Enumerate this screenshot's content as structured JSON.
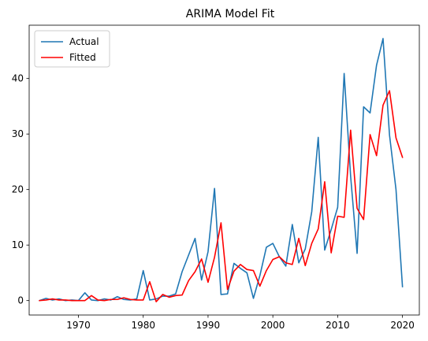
{
  "chart_data": {
    "type": "line",
    "title": "ARIMA Model Fit",
    "xlabel": "",
    "ylabel": "",
    "xlim": [
      1962.4,
      2022.6
    ],
    "ylim": [
      -2.6,
      49.6
    ],
    "x_ticks": [
      1970,
      1980,
      1990,
      2000,
      2010,
      2020
    ],
    "y_ticks": [
      0,
      10,
      20,
      30,
      40
    ],
    "legend_position": "top-left",
    "grid": false,
    "x": [
      1964,
      1965,
      1966,
      1967,
      1968,
      1969,
      1970,
      1971,
      1972,
      1973,
      1974,
      1975,
      1976,
      1977,
      1978,
      1979,
      1980,
      1981,
      1982,
      1983,
      1984,
      1985,
      1986,
      1987,
      1988,
      1989,
      1990,
      1991,
      1992,
      1993,
      1994,
      1995,
      1996,
      1997,
      1998,
      1999,
      2000,
      2001,
      2002,
      2003,
      2004,
      2005,
      2006,
      2007,
      2008,
      2009,
      2010,
      2011,
      2012,
      2013,
      2014,
      2015,
      2016,
      2017,
      2018,
      2019,
      2020
    ],
    "series": [
      {
        "name": "Actual",
        "color": "#1f77b4",
        "values": [
          0.0,
          0.4,
          0.1,
          0.3,
          0.0,
          0.1,
          0.0,
          1.4,
          0.1,
          0.0,
          0.3,
          0.1,
          0.7,
          0.2,
          0.1,
          0.3,
          5.4,
          0.1,
          0.3,
          0.8,
          0.8,
          1.2,
          5.2,
          8.2,
          11.2,
          3.7,
          8.8,
          20.2,
          1.1,
          1.2,
          6.7,
          5.8,
          5.0,
          0.4,
          4.5,
          9.6,
          10.3,
          7.9,
          6.2,
          13.7,
          6.8,
          9.3,
          16.0,
          29.4,
          9.1,
          12.8,
          16.8,
          40.9,
          22.4,
          8.5,
          34.9,
          33.8,
          42.4,
          47.2,
          29.8,
          20.0,
          2.5
        ]
      },
      {
        "name": "Fitted",
        "color": "#ff0000",
        "values": [
          0.0,
          0.1,
          0.3,
          0.1,
          0.1,
          0.0,
          0.0,
          0.0,
          0.9,
          0.1,
          0.0,
          0.2,
          0.2,
          0.5,
          0.2,
          0.1,
          0.1,
          3.4,
          -0.2,
          1.1,
          0.6,
          0.9,
          1.0,
          3.6,
          5.2,
          7.5,
          3.3,
          7.8,
          14.0,
          2.0,
          5.3,
          6.5,
          5.6,
          5.4,
          2.6,
          5.4,
          7.4,
          7.9,
          6.8,
          6.5,
          11.2,
          6.3,
          10.3,
          12.9,
          21.4,
          8.6,
          15.2,
          15.0,
          30.7,
          16.6,
          14.6,
          29.9,
          26.1,
          35.2,
          37.8,
          29.3,
          25.8
        ]
      }
    ]
  }
}
